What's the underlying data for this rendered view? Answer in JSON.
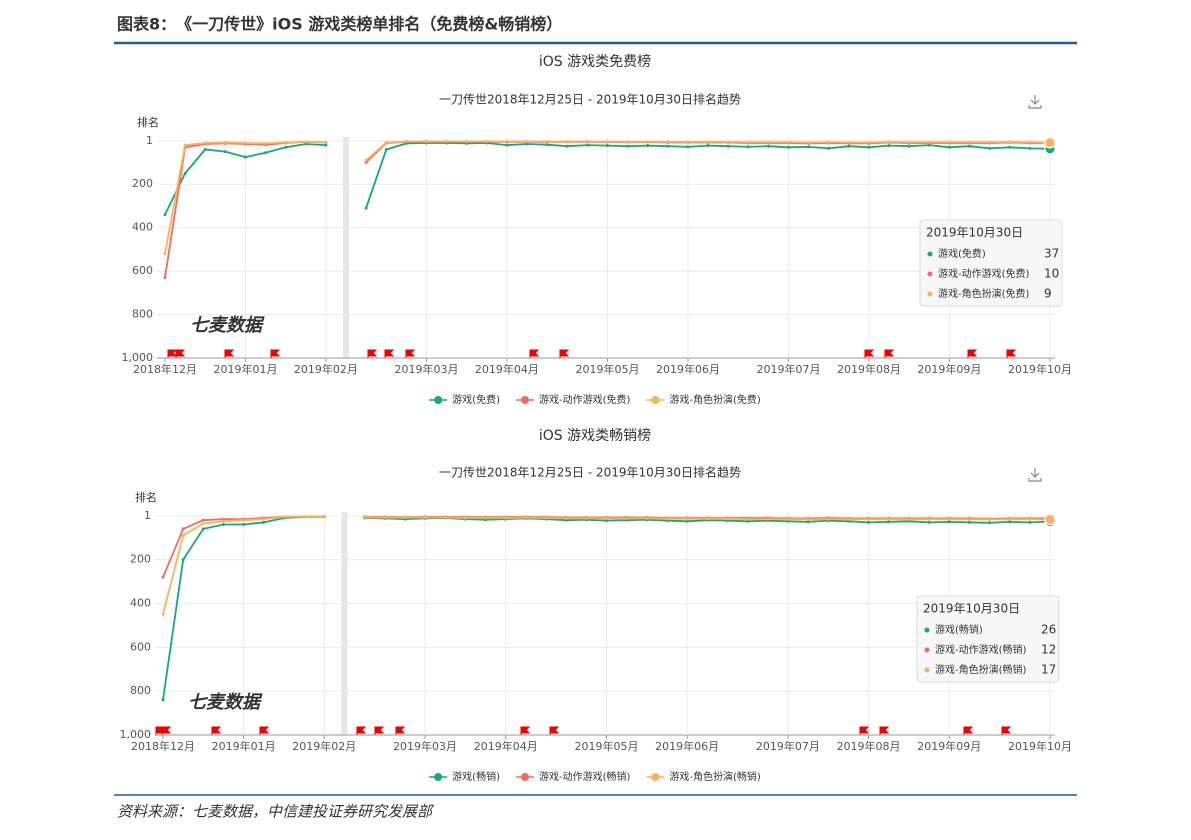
{
  "header": {
    "title": "图表8：　《一刀传世》iOS 游戏类榜单排名（免费榜&畅销榜）"
  },
  "chart_data": [
    {
      "type": "line",
      "title": "iOS 游戏类免费榜",
      "subtitle": "一刀传世2018年12月25日 - 2019年10月30日排名趋势",
      "y_label": "排名",
      "watermark": "七麦数据",
      "tooltip_title": "2019年10月30日",
      "y_reversed": true,
      "grid": true,
      "ylim": [
        1,
        1000
      ],
      "yticks": [
        1,
        200,
        400,
        600,
        800,
        {
          "value": 1000,
          "label": "1,000"
        }
      ],
      "categories": [
        "2018年12月",
        null,
        null,
        null,
        "2019年01月",
        null,
        null,
        null,
        "2019年02月",
        null,
        null,
        null,
        null,
        "2019年03月",
        null,
        null,
        null,
        "2019年04月",
        null,
        null,
        null,
        null,
        "2019年05月",
        null,
        null,
        null,
        "2019年06月",
        null,
        null,
        null,
        null,
        "2019年07月",
        null,
        null,
        null,
        "2019年08月",
        null,
        null,
        null,
        "2019年09月",
        null,
        null,
        null,
        null,
        "2019年10月"
      ],
      "series": [
        {
          "name": "游戏(免费)",
          "color": "#13a97b",
          "values": [
            340,
            150,
            40,
            50,
            75,
            55,
            30,
            15,
            20,
            null,
            310,
            40,
            12,
            10,
            10,
            12,
            10,
            20,
            15,
            18,
            25,
            20,
            22,
            25,
            22,
            25,
            28,
            22,
            25,
            28,
            25,
            30,
            28,
            35,
            25,
            30,
            22,
            25,
            20,
            30,
            25,
            35,
            30,
            35,
            37
          ]
        },
        {
          "name": "游戏-动作游戏(免费)",
          "color": "#f26b5e",
          "values": [
            630,
            30,
            15,
            12,
            15,
            18,
            10,
            5,
            8,
            null,
            100,
            10,
            5,
            5,
            5,
            5,
            5,
            5,
            5,
            5,
            5,
            5,
            6,
            6,
            6,
            8,
            8,
            8,
            8,
            10,
            10,
            10,
            12,
            10,
            12,
            12,
            8,
            10,
            10,
            10,
            10,
            10,
            8,
            10,
            10
          ]
        },
        {
          "name": "游戏-角色扮演(免费)",
          "color": "#fbb25a",
          "values": [
            520,
            20,
            10,
            8,
            10,
            12,
            8,
            5,
            6,
            null,
            90,
            8,
            3,
            3,
            3,
            3,
            3,
            3,
            3,
            3,
            3,
            3,
            4,
            4,
            4,
            5,
            5,
            5,
            5,
            6,
            6,
            6,
            8,
            6,
            8,
            8,
            5,
            6,
            6,
            6,
            6,
            6,
            5,
            6,
            9
          ]
        }
      ]
    },
    {
      "type": "line",
      "title": "iOS 游戏类畅销榜",
      "subtitle": "一刀传世2018年12月25日 - 2019年10月30日排名趋势",
      "y_label": "排名",
      "watermark": "七麦数据",
      "tooltip_title": "2019年10月30日",
      "y_reversed": true,
      "grid": true,
      "ylim": [
        1,
        1000
      ],
      "yticks": [
        1,
        200,
        400,
        600,
        800,
        {
          "value": 1000,
          "label": "1,000"
        }
      ],
      "categories": [
        "2018年12月",
        null,
        null,
        null,
        "2019年01月",
        null,
        null,
        null,
        "2019年02月",
        null,
        null,
        null,
        null,
        "2019年03月",
        null,
        null,
        null,
        "2019年04月",
        null,
        null,
        null,
        null,
        "2019年05月",
        null,
        null,
        null,
        "2019年06月",
        null,
        null,
        null,
        null,
        "2019年07月",
        null,
        null,
        null,
        "2019年08月",
        null,
        null,
        null,
        "2019年09月",
        null,
        null,
        null,
        null,
        "2019年10月"
      ],
      "series": [
        {
          "name": "游戏(畅销)",
          "color": "#13a97b",
          "values": [
            840,
            200,
            60,
            40,
            40,
            30,
            10,
            5,
            5,
            null,
            10,
            12,
            15,
            12,
            10,
            15,
            18,
            15,
            12,
            15,
            20,
            18,
            22,
            20,
            18,
            22,
            25,
            20,
            22,
            25,
            22,
            25,
            28,
            22,
            25,
            30,
            28,
            25,
            30,
            28,
            30,
            32,
            28,
            30,
            26
          ]
        },
        {
          "name": "游戏-动作游戏(畅销)",
          "color": "#f26b5e",
          "values": [
            280,
            60,
            20,
            15,
            15,
            10,
            5,
            3,
            3,
            null,
            5,
            5,
            6,
            5,
            5,
            6,
            6,
            6,
            5,
            6,
            8,
            8,
            8,
            8,
            8,
            10,
            10,
            10,
            10,
            10,
            10,
            12,
            12,
            10,
            12,
            12,
            12,
            12,
            12,
            12,
            12,
            14,
            12,
            12,
            12
          ]
        },
        {
          "name": "游戏-角色扮演(畅销)",
          "color": "#fbb25a",
          "values": [
            450,
            90,
            35,
            25,
            20,
            15,
            5,
            3,
            3,
            null,
            8,
            8,
            8,
            8,
            8,
            10,
            10,
            10,
            8,
            10,
            12,
            12,
            12,
            12,
            12,
            14,
            14,
            14,
            14,
            15,
            15,
            15,
            16,
            15,
            16,
            16,
            16,
            16,
            16,
            16,
            16,
            17,
            16,
            16,
            17
          ]
        }
      ]
    }
  ],
  "footer": {
    "source": "资料来源：七麦数据，中信建投证券研究发展部"
  }
}
